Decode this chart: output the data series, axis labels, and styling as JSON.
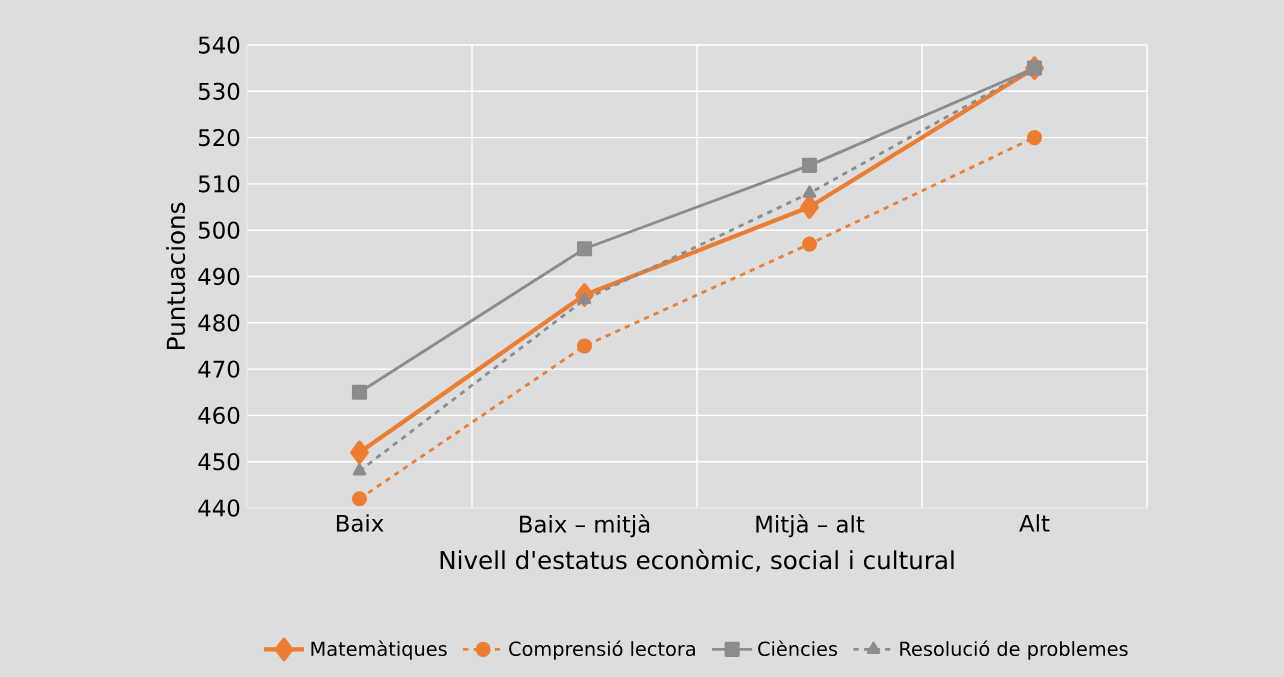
{
  "chart_data": {
    "type": "line",
    "xlabel": "Nivell d'estatus econòmic, social i cultural",
    "ylabel": "Puntuacions",
    "categories": [
      "Baix",
      "Baix – mitjà",
      "Mitjà – alt",
      "Alt"
    ],
    "ylim": [
      440,
      540
    ],
    "yticks": [
      440,
      450,
      460,
      470,
      480,
      490,
      500,
      510,
      520,
      530,
      540
    ],
    "grid": true,
    "legend": "bottom",
    "series": [
      {
        "name": "Matemàtiques",
        "color": "#ed7d31",
        "values": [
          452,
          486,
          505,
          535
        ],
        "marker": "diamond",
        "line_style": "solid"
      },
      {
        "name": "Comprensió lectora",
        "color": "#ed7d31",
        "values": [
          442,
          475,
          497,
          520
        ],
        "marker": "circle",
        "line_style": "dashed"
      },
      {
        "name": "Ciències",
        "color": "#8c8c8c",
        "values": [
          465,
          496,
          514,
          535
        ],
        "marker": "square",
        "line_style": "solid"
      },
      {
        "name": "Resolució de problemes",
        "color": "#8c8c8c",
        "values": [
          448,
          485,
          508,
          535
        ],
        "marker": "triangle",
        "line_style": "dashed"
      }
    ]
  }
}
